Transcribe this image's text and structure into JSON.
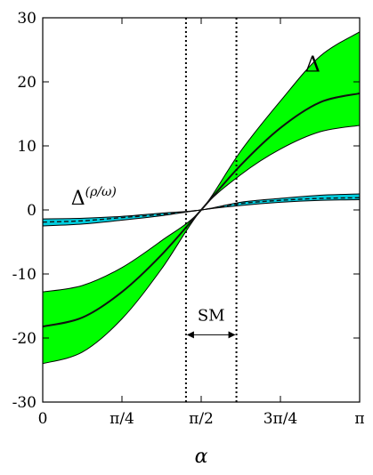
{
  "chart_data": {
    "type": "area",
    "title": "",
    "xlabel": "α",
    "ylabel": "",
    "xlim": [
      0,
      3.14159
    ],
    "ylim": [
      -30,
      30
    ],
    "grid": false,
    "x_ticks": [
      {
        "value": 0,
        "label": "0"
      },
      {
        "value": 0.7854,
        "label": "π/4"
      },
      {
        "value": 1.5708,
        "label": "π/2"
      },
      {
        "value": 2.3562,
        "label": "3π/4"
      },
      {
        "value": 3.14159,
        "label": "π"
      }
    ],
    "y_ticks": [
      {
        "value": 30,
        "label": "30"
      },
      {
        "value": 20,
        "label": "20"
      },
      {
        "value": 10,
        "label": "10"
      },
      {
        "value": 0,
        "label": "0"
      },
      {
        "value": -10,
        "label": "-10"
      },
      {
        "value": -20,
        "label": "-20"
      },
      {
        "value": -30,
        "label": "-30"
      }
    ],
    "series": [
      {
        "name": "Δ",
        "color": "#00ff00",
        "x": [
          0,
          0.3927,
          0.7854,
          1.1781,
          1.5708,
          1.9635,
          2.3562,
          2.7489,
          3.14159
        ],
        "lower": [
          -24.0,
          -22.2,
          -17.0,
          -9.2,
          0.0,
          5.5,
          9.5,
          12.2,
          13.2
        ],
        "center": [
          -18.2,
          -16.8,
          -12.8,
          -7.0,
          0.0,
          7.0,
          12.8,
          16.8,
          18.2
        ],
        "upper": [
          -12.8,
          -11.8,
          -9.0,
          -4.8,
          0.0,
          9.2,
          17.0,
          24.0,
          27.8
        ]
      },
      {
        "name": "Δ(ρ/ω)",
        "color": "#00ccdd",
        "x": [
          0,
          0.3927,
          0.7854,
          1.1781,
          1.5708,
          1.9635,
          2.3562,
          2.7489,
          3.14159
        ],
        "lower": [
          -2.5,
          -2.2,
          -1.6,
          -0.9,
          0.0,
          0.7,
          1.2,
          1.5,
          1.6
        ],
        "center": [
          -1.9,
          -1.7,
          -1.2,
          -0.7,
          0.0,
          1.0,
          1.5,
          1.8,
          1.9
        ],
        "upper": [
          -1.4,
          -1.3,
          -1.0,
          -0.5,
          0.0,
          1.2,
          1.8,
          2.3,
          2.5
        ]
      }
    ],
    "vlines": [
      1.42,
      1.92
    ],
    "annotations": [
      {
        "label": "Δ",
        "x": 2.6,
        "y": 21.6
      },
      {
        "label_main": "Δ",
        "label_sup": "(ρ/ω)",
        "x": 0.28,
        "y": 0.8
      },
      {
        "label": "SM",
        "x": 1.67,
        "y": -17.3,
        "arrow_from": 1.42,
        "arrow_to": 1.92,
        "arrow_y": -19.5
      }
    ]
  }
}
